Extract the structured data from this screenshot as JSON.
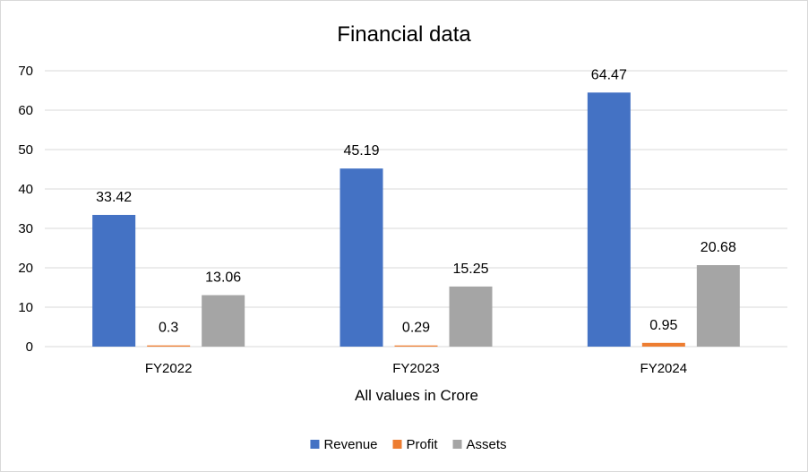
{
  "chart_data": {
    "type": "bar",
    "title": "Financial data",
    "xlabel": "All values in Crore",
    "ylabel": "",
    "categories": [
      "FY2022",
      "FY2023",
      "FY2024"
    ],
    "series": [
      {
        "name": "Revenue",
        "values": [
          33.42,
          45.19,
          64.47
        ],
        "color": "#4472c4"
      },
      {
        "name": "Profit",
        "values": [
          0.3,
          0.29,
          0.95
        ],
        "color": "#ed7d31"
      },
      {
        "name": "Assets",
        "values": [
          13.06,
          15.25,
          20.68
        ],
        "color": "#a5a5a5"
      }
    ],
    "ylim": [
      0,
      70
    ],
    "yticks": [
      0,
      10,
      20,
      30,
      40,
      50,
      60,
      70
    ],
    "data_labels": true,
    "grid": true,
    "legend": "bottom",
    "colors": {
      "gridline": "#d9d9d9",
      "border": "#d9d9d9"
    }
  }
}
